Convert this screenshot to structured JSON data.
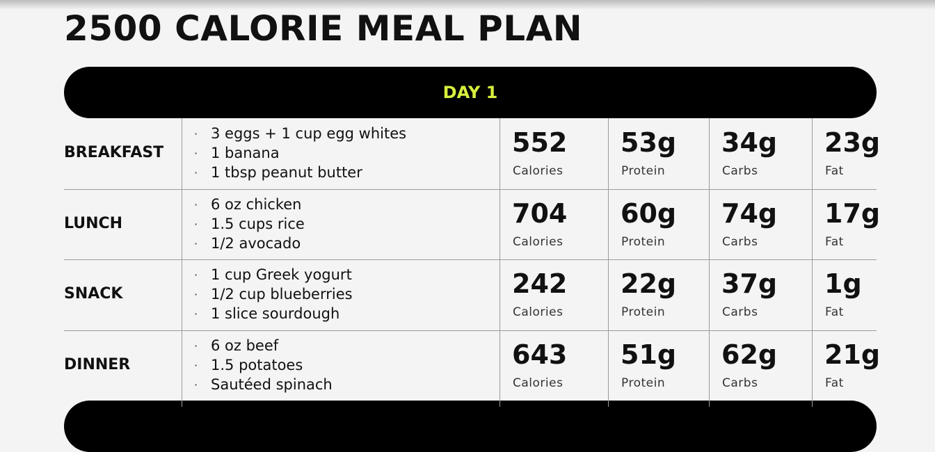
{
  "title": "2500 CALORIE MEAL PLAN",
  "day": "DAY 1",
  "meals": [
    {
      "name": "BREAKFAST",
      "items": [
        "3 eggs + 1 cup egg whites",
        "1 banana",
        "1 tbsp peanut butter"
      ],
      "stats": [
        {
          "value": "552",
          "label": "Calories"
        },
        {
          "value": "53g",
          "label": "Protein"
        },
        {
          "value": "34g",
          "label": "Carbs"
        },
        {
          "value": "23g",
          "label": "Fat"
        }
      ]
    },
    {
      "name": "LUNCH",
      "items": [
        "6 oz chicken",
        "1.5 cups rice",
        "1/2 avocado"
      ],
      "stats": [
        {
          "value": "704",
          "label": "Calories"
        },
        {
          "value": "60g",
          "label": "Protein"
        },
        {
          "value": "74g",
          "label": "Carbs"
        },
        {
          "value": "17g",
          "label": "Fat"
        }
      ]
    },
    {
      "name": "SNACK",
      "items": [
        "1 cup Greek yogurt",
        "1/2 cup blueberries",
        "1 slice sourdough"
      ],
      "stats": [
        {
          "value": "242",
          "label": "Calories"
        },
        {
          "value": "22g",
          "label": "Protein"
        },
        {
          "value": "37g",
          "label": "Carbs"
        },
        {
          "value": "1g",
          "label": "Fat"
        }
      ]
    },
    {
      "name": "DINNER",
      "items": [
        "6 oz beef",
        "1.5 potatoes",
        "Sautéed spinach"
      ],
      "stats": [
        {
          "value": "643",
          "label": "Calories"
        },
        {
          "value": "51g",
          "label": "Protein"
        },
        {
          "value": "62g",
          "label": "Carbs"
        },
        {
          "value": "21g",
          "label": "Fat"
        }
      ]
    }
  ]
}
